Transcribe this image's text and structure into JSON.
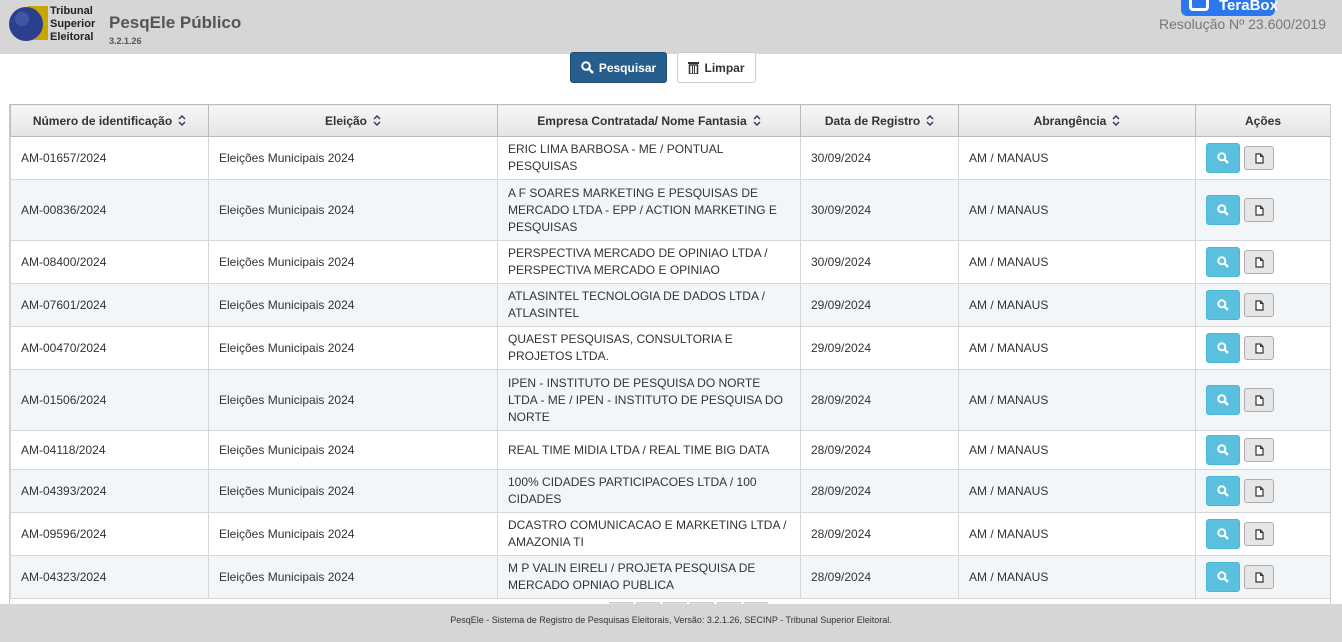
{
  "header": {
    "institution": [
      "Tribunal",
      "Superior",
      "Eleitoral"
    ],
    "app_title": "PesqEle Público",
    "version": "3.2.1.26",
    "extension_button": "TeraBox",
    "resolution": "Resolução Nº 23.600/2019"
  },
  "buttons": {
    "search": "Pesquisar",
    "clear": "Limpar"
  },
  "table": {
    "columns": [
      "Número de identificação",
      "Eleição",
      "Empresa Contratada/ Nome Fantasia",
      "Data de Registro",
      "Abrangência",
      "Ações"
    ],
    "rows": [
      [
        "AM-01657/2024",
        "Eleições Municipais 2024",
        "ERIC LIMA BARBOSA - ME / PONTUAL PESQUISAS",
        "30/09/2024",
        "AM / MANAUS"
      ],
      [
        "AM-00836/2024",
        "Eleições Municipais 2024",
        "A F SOARES MARKETING E PESQUISAS DE MERCADO LTDA - EPP / ACTION MARKETING E PESQUISAS",
        "30/09/2024",
        "AM / MANAUS"
      ],
      [
        "AM-08400/2024",
        "Eleições Municipais 2024",
        "PERSPECTIVA MERCADO DE OPINIAO LTDA / PERSPECTIVA MERCADO E OPINIAO",
        "30/09/2024",
        "AM / MANAUS"
      ],
      [
        "AM-07601/2024",
        "Eleições Municipais 2024",
        "ATLASINTEL TECNOLOGIA DE DADOS LTDA / ATLASINTEL",
        "29/09/2024",
        "AM / MANAUS"
      ],
      [
        "AM-00470/2024",
        "Eleições Municipais 2024",
        "QUAEST PESQUISAS, CONSULTORIA E PROJETOS LTDA.",
        "29/09/2024",
        "AM / MANAUS"
      ],
      [
        "AM-01506/2024",
        "Eleições Municipais 2024",
        "IPEN - INSTITUTO DE PESQUISA DO NORTE LTDA - ME / IPEN - INSTITUTO DE PESQUISA DO NORTE",
        "28/09/2024",
        "AM / MANAUS"
      ],
      [
        "AM-04118/2024",
        "Eleições Municipais 2024",
        "REAL TIME MIDIA LTDA / REAL TIME BIG DATA",
        "28/09/2024",
        "AM / MANAUS"
      ],
      [
        "AM-04393/2024",
        "Eleições Municipais 2024",
        "100% CIDADES PARTICIPACOES LTDA / 100 CIDADES",
        "28/09/2024",
        "AM / MANAUS"
      ],
      [
        "AM-09596/2024",
        "Eleições Municipais 2024",
        "DCASTRO COMUNICACAO E MARKETING LTDA / AMAZONIA TI",
        "28/09/2024",
        "AM / MANAUS"
      ],
      [
        "AM-04323/2024",
        "Eleições Municipais 2024",
        "M P VALIN EIRELI / PROJETA PESQUISA DE MERCADO OPNIAO PUBLICA",
        "28/09/2024",
        "AM / MANAUS"
      ]
    ]
  },
  "footer": "PesqEle - Sistema de Registro de Pesquisas Eleitorais, Versão: 3.2.1.26, SECINP - Tribunal Superior Eleitoral."
}
